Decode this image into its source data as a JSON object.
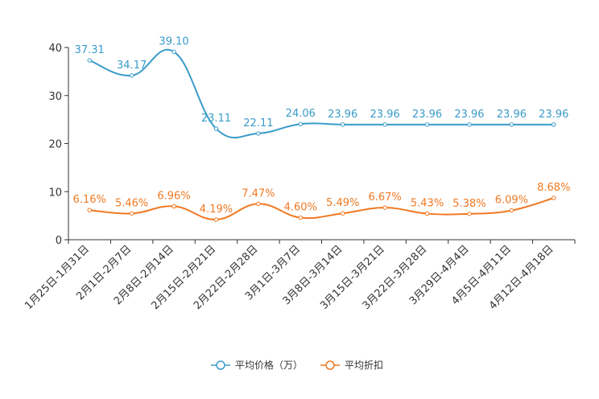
{
  "chart_data": {
    "type": "line",
    "title": "",
    "xlabel": "",
    "ylabel": "",
    "ylim": [
      0,
      40
    ],
    "yticks": [
      0,
      10,
      20,
      30,
      40
    ],
    "grid": false,
    "legend_position": "bottom-center",
    "categories": [
      "1月25日-1月31日",
      "2月1日-2月7日",
      "2月8日-2月14日",
      "2月15日-2月21日",
      "2月22日-2月28日",
      "3月1日-3月7日",
      "3月8日-3月14日",
      "3月15日-3月21日",
      "3月22日-3月28日",
      "3月29日-4月4日",
      "4月5日-4月11日",
      "4月12日-4月18日"
    ],
    "series": [
      {
        "name": "平均价格（万）",
        "color": "#3a9bc9",
        "values": [
          37.31,
          34.17,
          39.1,
          23.11,
          22.11,
          24.06,
          23.96,
          23.96,
          23.96,
          23.96,
          23.96,
          23.96
        ],
        "labels": [
          "37.31",
          "34.17",
          "39.10",
          "23.11",
          "22.11",
          "24.06",
          "23.96",
          "23.96",
          "23.96",
          "23.96",
          "23.96",
          "23.96"
        ]
      },
      {
        "name": "平均折扣",
        "color": "#f07922",
        "values": [
          6.16,
          5.46,
          6.96,
          4.19,
          7.47,
          4.6,
          5.49,
          6.67,
          5.43,
          5.38,
          6.09,
          8.68
        ],
        "labels": [
          "6.16%",
          "5.46%",
          "6.96%",
          "4.19%",
          "7.47%",
          "4.60%",
          "5.49%",
          "6.67%",
          "5.43%",
          "5.38%",
          "6.09%",
          "8.68%"
        ]
      }
    ]
  }
}
